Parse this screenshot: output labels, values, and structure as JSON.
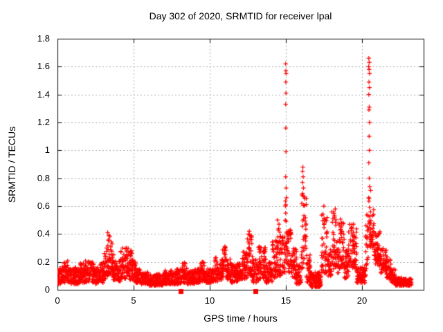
{
  "window": {
    "background": "#ffffff"
  },
  "colors": {
    "marker": "#ff0000",
    "grid": "#a6a6a6",
    "border": "#000000",
    "text": "#000000"
  },
  "chart_data": {
    "type": "scatter",
    "title": "Day 302 of 2020, SRMTID for receiver lpal",
    "xlabel": "GPS time / hours",
    "ylabel": "SRMTID / TECUs",
    "xlim": [
      0,
      24.05
    ],
    "ylim": [
      0,
      1.8
    ],
    "grid": true,
    "legend": "none",
    "xticks": {
      "values": [
        0,
        5,
        10,
        15,
        20
      ],
      "labels": [
        "0",
        "5",
        "10",
        "15",
        "20"
      ]
    },
    "yticks": {
      "values": [
        0,
        0.2,
        0.4,
        0.6,
        0.8,
        1.0,
        1.2,
        1.4,
        1.6,
        1.8
      ],
      "labels": [
        "0",
        "0.2",
        "0.4",
        "0.6",
        "0.8",
        "1",
        "1.2",
        "1.4",
        "1.6",
        "1.8"
      ]
    },
    "series": [
      {
        "name": "srmtid",
        "marker": "plus",
        "color": "#ff0000",
        "points_per_hour": 120,
        "band_envelope": [
          [
            0.0,
            0.3,
            0.04,
            0.16
          ],
          [
            0.3,
            0.6,
            0.05,
            0.2
          ],
          [
            0.6,
            0.9,
            0.05,
            0.21
          ],
          [
            0.9,
            1.2,
            0.04,
            0.16
          ],
          [
            1.2,
            1.5,
            0.04,
            0.15
          ],
          [
            1.5,
            1.8,
            0.05,
            0.19
          ],
          [
            1.8,
            2.1,
            0.05,
            0.22
          ],
          [
            2.1,
            2.4,
            0.05,
            0.2
          ],
          [
            2.4,
            2.7,
            0.04,
            0.16
          ],
          [
            2.7,
            3.0,
            0.05,
            0.2
          ],
          [
            3.0,
            3.2,
            0.08,
            0.27
          ],
          [
            3.2,
            3.45,
            0.1,
            0.4
          ],
          [
            3.45,
            3.65,
            0.1,
            0.35
          ],
          [
            3.65,
            3.9,
            0.07,
            0.26
          ],
          [
            3.9,
            4.15,
            0.06,
            0.21
          ],
          [
            4.15,
            4.4,
            0.08,
            0.3
          ],
          [
            4.4,
            4.65,
            0.08,
            0.3
          ],
          [
            4.65,
            4.9,
            0.07,
            0.28
          ],
          [
            4.9,
            5.15,
            0.06,
            0.22
          ],
          [
            5.15,
            5.5,
            0.05,
            0.16
          ],
          [
            5.5,
            6.0,
            0.04,
            0.13
          ],
          [
            6.0,
            6.5,
            0.03,
            0.11
          ],
          [
            6.5,
            7.0,
            0.03,
            0.12
          ],
          [
            7.0,
            7.5,
            0.04,
            0.14
          ],
          [
            7.5,
            7.8,
            0.04,
            0.12
          ],
          [
            7.8,
            8.2,
            0.04,
            0.15
          ],
          [
            8.2,
            8.5,
            0.05,
            0.2
          ],
          [
            8.5,
            9.0,
            0.04,
            0.14
          ],
          [
            9.0,
            9.4,
            0.05,
            0.15
          ],
          [
            9.4,
            9.7,
            0.06,
            0.2
          ],
          [
            9.7,
            10.1,
            0.05,
            0.15
          ],
          [
            10.1,
            10.3,
            0.06,
            0.16
          ],
          [
            10.3,
            10.6,
            0.06,
            0.24
          ],
          [
            10.6,
            10.8,
            0.07,
            0.2
          ],
          [
            10.8,
            11.1,
            0.09,
            0.31
          ],
          [
            11.1,
            11.4,
            0.07,
            0.23
          ],
          [
            11.4,
            11.8,
            0.05,
            0.18
          ],
          [
            11.8,
            12.1,
            0.06,
            0.2
          ],
          [
            12.1,
            12.45,
            0.08,
            0.28
          ],
          [
            12.45,
            12.8,
            0.1,
            0.4
          ],
          [
            12.8,
            13.2,
            0.05,
            0.22
          ],
          [
            13.2,
            13.7,
            0.08,
            0.31
          ],
          [
            13.7,
            14.1,
            0.05,
            0.2
          ],
          [
            14.1,
            14.45,
            0.08,
            0.38
          ],
          [
            14.45,
            14.75,
            0.1,
            0.44
          ],
          [
            14.75,
            14.95,
            0.12,
            0.42
          ],
          [
            14.95,
            15.15,
            0.18,
            0.66
          ],
          [
            15.15,
            15.4,
            0.12,
            0.46
          ],
          [
            15.4,
            15.7,
            0.08,
            0.3
          ],
          [
            15.7,
            16.0,
            0.04,
            0.18
          ],
          [
            16.0,
            16.35,
            0.15,
            0.7
          ],
          [
            16.35,
            16.6,
            0.05,
            0.25
          ],
          [
            16.6,
            17.35,
            0.02,
            0.13
          ],
          [
            17.35,
            17.75,
            0.12,
            0.57
          ],
          [
            17.75,
            18.0,
            0.1,
            0.3
          ],
          [
            18.0,
            18.3,
            0.15,
            0.57
          ],
          [
            18.3,
            18.45,
            0.12,
            0.35
          ],
          [
            18.45,
            18.85,
            0.15,
            0.52
          ],
          [
            18.85,
            19.1,
            0.08,
            0.28
          ],
          [
            19.1,
            19.65,
            0.15,
            0.47
          ],
          [
            19.65,
            20.25,
            0.05,
            0.16
          ],
          [
            20.25,
            20.42,
            0.15,
            0.55
          ],
          [
            20.42,
            20.58,
            0.3,
            0.72
          ],
          [
            20.58,
            20.8,
            0.3,
            0.6
          ],
          [
            20.8,
            21.2,
            0.17,
            0.42
          ],
          [
            21.2,
            21.6,
            0.12,
            0.3
          ],
          [
            21.6,
            21.9,
            0.08,
            0.24
          ],
          [
            21.9,
            22.2,
            0.05,
            0.15
          ],
          [
            22.2,
            22.6,
            0.03,
            0.09
          ],
          [
            22.6,
            23.25,
            0.03,
            0.08
          ]
        ],
        "outlier_points": [
          [
            14.99,
            1.62
          ],
          [
            15.0,
            1.57
          ],
          [
            15.02,
            1.55
          ],
          [
            15.0,
            1.49
          ],
          [
            15.01,
            1.41
          ],
          [
            14.99,
            1.33
          ],
          [
            15.0,
            1.16
          ],
          [
            15.01,
            0.99
          ],
          [
            14.99,
            0.81
          ],
          [
            15.02,
            0.73
          ],
          [
            15.04,
            0.66
          ],
          [
            15.0,
            0.61
          ],
          [
            16.12,
            0.88
          ],
          [
            16.1,
            0.85
          ],
          [
            16.14,
            0.81
          ],
          [
            16.09,
            0.77
          ],
          [
            16.16,
            0.73
          ],
          [
            20.45,
            1.66
          ],
          [
            20.48,
            1.63
          ],
          [
            20.44,
            1.6
          ],
          [
            20.47,
            1.58
          ],
          [
            20.5,
            1.55
          ],
          [
            20.46,
            1.49
          ],
          [
            20.49,
            1.45
          ],
          [
            20.45,
            1.4
          ],
          [
            20.48,
            1.31
          ],
          [
            20.46,
            1.29
          ],
          [
            20.5,
            1.2
          ],
          [
            20.47,
            1.1
          ],
          [
            20.49,
            1.0
          ],
          [
            20.45,
            0.91
          ],
          [
            20.48,
            0.8
          ],
          [
            20.51,
            0.74
          ],
          [
            20.44,
            0.66
          ],
          [
            3.3,
            0.41
          ],
          [
            3.38,
            0.39
          ],
          [
            11.0,
            0.31
          ],
          [
            12.55,
            0.4
          ],
          [
            12.6,
            0.42
          ],
          [
            14.45,
            0.5
          ],
          [
            14.55,
            0.47
          ],
          [
            17.5,
            0.6
          ],
          [
            18.25,
            0.58
          ],
          [
            19.45,
            0.47
          ]
        ]
      },
      {
        "name": "flag-markers",
        "marker": "filled-square",
        "color": "#ff0000",
        "points": [
          [
            8.08,
            0
          ],
          [
            13.02,
            0
          ]
        ]
      }
    ]
  }
}
